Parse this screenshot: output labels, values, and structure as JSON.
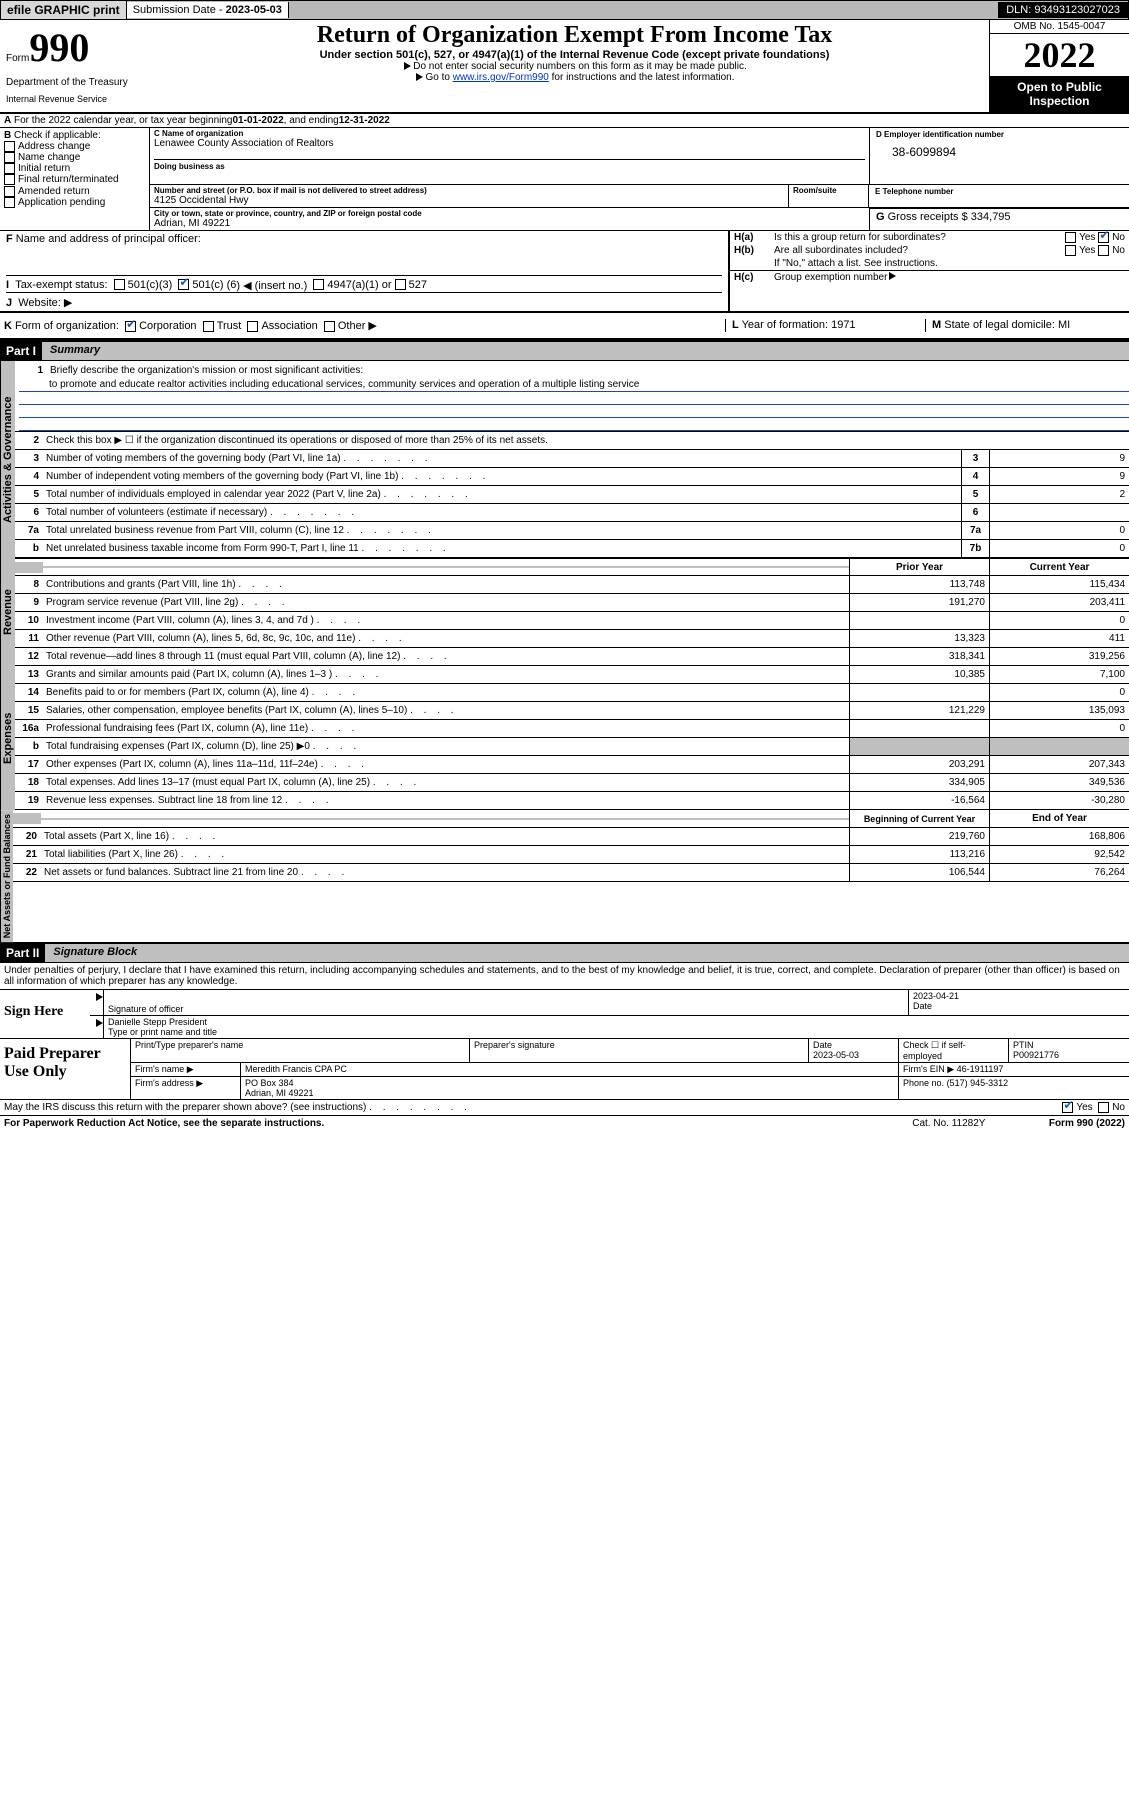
{
  "topbar": {
    "efile": "efile GRAPHIC print",
    "subdate_lbl": "Submission Date - ",
    "subdate": "2023-05-03",
    "dln": "DLN: 93493123027023"
  },
  "header": {
    "form_word": "Form",
    "form_no": "990",
    "title": "Return of Organization Exempt From Income Tax",
    "sub": "Under section 501(c), 527, or 4947(a)(1) of the Internal Revenue Code (except private foundations)",
    "note1": "Do not enter social security numbers on this form as it may be made public.",
    "note2a": "Go to ",
    "note2link": "www.irs.gov/Form990",
    "note2b": " for instructions and the latest information.",
    "omb": "OMB No. 1545-0047",
    "year": "2022",
    "open": "Open to Public Inspection",
    "dept": "Department of the Treasury",
    "irs": "Internal Revenue Service"
  },
  "lineA": {
    "pre": "For the 2022 calendar year, or tax year beginning ",
    "beg": "01-01-2022",
    "mid": " , and ending ",
    "end": "12-31-2022"
  },
  "B": {
    "lbl": "Check if applicable:",
    "items": [
      "Address change",
      "Name change",
      "Initial return",
      "Final return/terminated",
      "Amended return",
      "Application pending"
    ]
  },
  "C": {
    "name_lbl": "Name of organization",
    "name": "Lenawee County Association of Realtors",
    "dba_lbl": "Doing business as",
    "addr_lbl": "Number and street (or P.O. box if mail is not delivered to street address)",
    "room_lbl": "Room/suite",
    "addr": "4125 Occidental Hwy",
    "city_lbl": "City or town, state or province, country, and ZIP or foreign postal code",
    "city": "Adrian, MI  49221"
  },
  "D": {
    "lbl": "Employer identification number",
    "val": "38-6099894"
  },
  "E": {
    "lbl": "Telephone number",
    "val": ""
  },
  "G": {
    "lbl": "Gross receipts $",
    "val": "334,795"
  },
  "F": {
    "lbl": "Name and address of principal officer:"
  },
  "H": {
    "a": "Is this a group return for subordinates?",
    "b": "Are all subordinates included?",
    "bnote": "If \"No,\" attach a list. See instructions.",
    "c": "Group exemption number"
  },
  "I": {
    "lbl": "Tax-exempt status:",
    "opt1": "501(c)(3)",
    "opt2a": "501(c) (",
    "opt2b": "6",
    "opt2c": ") ◀ (insert no.)",
    "opt3": "4947(a)(1) or",
    "opt4": "527"
  },
  "J": {
    "lbl": "Website: ▶"
  },
  "K": {
    "lbl": "Form of organization:",
    "opts": [
      "Corporation",
      "Trust",
      "Association",
      "Other ▶"
    ]
  },
  "L": {
    "lbl": "Year of formation:",
    "val": "1971"
  },
  "M": {
    "lbl": "State of legal domicile:",
    "val": "MI"
  },
  "part1": {
    "hdr": "Part I",
    "title": "Summary",
    "q1": "Briefly describe the organization's mission or most significant activities:",
    "mission": "to promote and educate realtor activities including educational services, community services and operation of a multiple listing service",
    "q2": "Check this box ▶ ☐ if the organization discontinued its operations or disposed of more than 25% of its net assets.",
    "sidelabels": {
      "ag": "Activities & Governance",
      "rev": "Revenue",
      "exp": "Expenses",
      "na": "Net Assets or Fund Balances"
    },
    "rows_ag": [
      {
        "n": "3",
        "t": "Number of voting members of the governing body (Part VI, line 1a)",
        "box": "3",
        "v": "9"
      },
      {
        "n": "4",
        "t": "Number of independent voting members of the governing body (Part VI, line 1b)",
        "box": "4",
        "v": "9"
      },
      {
        "n": "5",
        "t": "Total number of individuals employed in calendar year 2022 (Part V, line 2a)",
        "box": "5",
        "v": "2"
      },
      {
        "n": "6",
        "t": "Total number of volunteers (estimate if necessary)",
        "box": "6",
        "v": ""
      },
      {
        "n": "7a",
        "t": "Total unrelated business revenue from Part VIII, column (C), line 12",
        "box": "7a",
        "v": "0"
      },
      {
        "n": "b",
        "t": "Net unrelated business taxable income from Form 990-T, Part I, line 11",
        "box": "7b",
        "v": "0"
      }
    ],
    "col_prior": "Prior Year",
    "col_curr": "Current Year",
    "rows_rev": [
      {
        "n": "8",
        "t": "Contributions and grants (Part VIII, line 1h)",
        "p": "113,748",
        "c": "115,434"
      },
      {
        "n": "9",
        "t": "Program service revenue (Part VIII, line 2g)",
        "p": "191,270",
        "c": "203,411"
      },
      {
        "n": "10",
        "t": "Investment income (Part VIII, column (A), lines 3, 4, and 7d )",
        "p": "",
        "c": "0"
      },
      {
        "n": "11",
        "t": "Other revenue (Part VIII, column (A), lines 5, 6d, 8c, 9c, 10c, and 11e)",
        "p": "13,323",
        "c": "411"
      },
      {
        "n": "12",
        "t": "Total revenue—add lines 8 through 11 (must equal Part VIII, column (A), line 12)",
        "p": "318,341",
        "c": "319,256"
      }
    ],
    "rows_exp": [
      {
        "n": "13",
        "t": "Grants and similar amounts paid (Part IX, column (A), lines 1–3 )",
        "p": "10,385",
        "c": "7,100"
      },
      {
        "n": "14",
        "t": "Benefits paid to or for members (Part IX, column (A), line 4)",
        "p": "",
        "c": "0"
      },
      {
        "n": "15",
        "t": "Salaries, other compensation, employee benefits (Part IX, column (A), lines 5–10)",
        "p": "121,229",
        "c": "135,093"
      },
      {
        "n": "16a",
        "t": "Professional fundraising fees (Part IX, column (A), line 11e)",
        "p": "",
        "c": "0"
      },
      {
        "n": "b",
        "t": "Total fundraising expenses (Part IX, column (D), line 25) ▶0",
        "p": "SHADE",
        "c": "SHADE"
      },
      {
        "n": "17",
        "t": "Other expenses (Part IX, column (A), lines 11a–11d, 11f–24e)",
        "p": "203,291",
        "c": "207,343"
      },
      {
        "n": "18",
        "t": "Total expenses. Add lines 13–17 (must equal Part IX, column (A), line 25)",
        "p": "334,905",
        "c": "349,536"
      },
      {
        "n": "19",
        "t": "Revenue less expenses. Subtract line 18 from line 12",
        "p": "-16,564",
        "c": "-30,280"
      }
    ],
    "col_beg": "Beginning of Current Year",
    "col_end": "End of Year",
    "rows_na": [
      {
        "n": "20",
        "t": "Total assets (Part X, line 16)",
        "p": "219,760",
        "c": "168,806"
      },
      {
        "n": "21",
        "t": "Total liabilities (Part X, line 26)",
        "p": "113,216",
        "c": "92,542"
      },
      {
        "n": "22",
        "t": "Net assets or fund balances. Subtract line 21 from line 20",
        "p": "106,544",
        "c": "76,264"
      }
    ]
  },
  "part2": {
    "hdr": "Part II",
    "title": "Signature Block",
    "decl": "Under penalties of perjury, I declare that I have examined this return, including accompanying schedules and statements, and to the best of my knowledge and belief, it is true, correct, and complete. Declaration of preparer (other than officer) is based on all information of which preparer has any knowledge."
  },
  "sign": {
    "here": "Sign Here",
    "sig_lbl": "Signature of officer",
    "date_lbl": "Date",
    "date": "2023-04-21",
    "name": "Danielle Stepp President",
    "name_lbl": "Type or print name and title"
  },
  "prep": {
    "title": "Paid Preparer Use Only",
    "h1": "Print/Type preparer's name",
    "h2": "Preparer's signature",
    "h3": "Date",
    "date": "2023-05-03",
    "selfemp": "Check ☐ if self-employed",
    "ptin_lbl": "PTIN",
    "ptin": "P00921776",
    "firm_lbl": "Firm's name ▶",
    "firm": "Meredith Francis CPA PC",
    "ein_lbl": "Firm's EIN ▶",
    "ein": "46-1911197",
    "addr_lbl": "Firm's address ▶",
    "addr1": "PO Box 384",
    "addr2": "Adrian, MI  49221",
    "phone_lbl": "Phone no.",
    "phone": "(517) 945-3312"
  },
  "foot": {
    "q": "May the IRS discuss this return with the preparer shown above? (see instructions)",
    "paperwork": "For Paperwork Reduction Act Notice, see the separate instructions.",
    "cat": "Cat. No. 11282Y",
    "formno": "Form 990 (2022)"
  },
  "colors": {
    "shade": "#bfbfbf",
    "link": "#0033cc",
    "rule": "#1a4ba0"
  }
}
